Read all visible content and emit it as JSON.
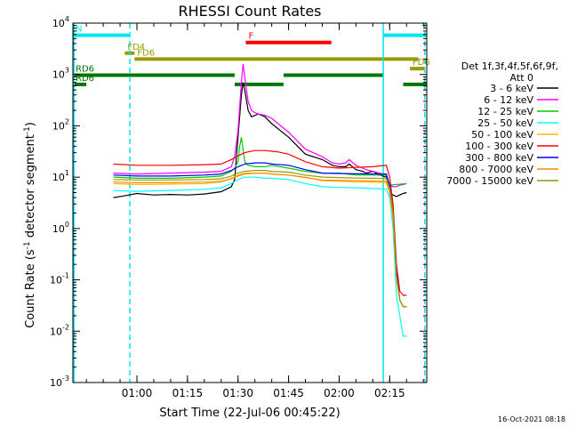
{
  "chart_data": {
    "type": "line",
    "title": "RHESSI Count Rates",
    "xlabel": "Start Time (22-Jul-06 00:45:22)",
    "ylabel_main": "Count Rate (s",
    "ylabel_sup1": "-1",
    "ylabel_mid": " detector segment",
    "ylabel_sup2": "-1",
    "ylabel_end": ")",
    "ylog": true,
    "xlim_min": [
      41.0,
      146.0
    ],
    "ylim_exp": [
      -3,
      4
    ],
    "xticks": [
      {
        "label": "01:00",
        "min": 60
      },
      {
        "label": "01:15",
        "min": 75
      },
      {
        "label": "01:30",
        "min": 90
      },
      {
        "label": "01:45",
        "min": 105
      },
      {
        "label": "02:00",
        "min": 120
      },
      {
        "label": "02:15",
        "min": 135
      }
    ],
    "yticks_exp": [
      -3,
      -2,
      -1,
      0,
      1,
      2,
      3,
      4
    ],
    "legend_header": [
      "Det 1f,3f,4f,5f,6f,9f,",
      "Att 0"
    ],
    "legend_placement": "right",
    "series": [
      {
        "name": "3 - 6 keV",
        "color": "#000000",
        "x": [
          53,
          56,
          60,
          65,
          70,
          75,
          80,
          85,
          88,
          89,
          90,
          91,
          91.5,
          92,
          93,
          94,
          96,
          98,
          100,
          105,
          110,
          115,
          118,
          120,
          122,
          123,
          125,
          127,
          128,
          130,
          132,
          134,
          135,
          136,
          137,
          138,
          139,
          140
        ],
        "y": [
          4,
          4.3,
          4.8,
          4.5,
          4.6,
          4.5,
          4.7,
          5.2,
          6.5,
          9,
          60,
          400,
          700,
          500,
          200,
          150,
          170,
          150,
          110,
          60,
          28,
          22,
          17,
          16,
          16,
          18,
          14,
          13,
          12,
          13,
          11,
          10,
          5,
          4.5,
          4.2,
          4.5,
          4.8,
          5
        ]
      },
      {
        "name": "6 - 12 keV",
        "color": "#ff00ff",
        "x": [
          53,
          60,
          70,
          80,
          85,
          88,
          89,
          90,
          91,
          91.5,
          92,
          93,
          94,
          95,
          96,
          98,
          100,
          105,
          110,
          115,
          118,
          120,
          122,
          123,
          125,
          128,
          130,
          132,
          134,
          135,
          136,
          137,
          138,
          139,
          140
        ],
        "y": [
          12,
          11.5,
          12,
          12.5,
          13,
          16,
          25,
          80,
          700,
          1600,
          900,
          300,
          200,
          180,
          170,
          160,
          140,
          75,
          35,
          25,
          19,
          18,
          19,
          22,
          17,
          14,
          13,
          12,
          11,
          7,
          6.5,
          6.5,
          7,
          7.2,
          7.5
        ]
      },
      {
        "name": "12 - 25 keV",
        "color": "#00cc00",
        "x": [
          53,
          60,
          70,
          80,
          85,
          88,
          89,
          90,
          90.5,
          91,
          92,
          93,
          95,
          98,
          100,
          105,
          110,
          115,
          120,
          125,
          130,
          134,
          135,
          140
        ],
        "y": [
          10,
          9.5,
          9.5,
          10,
          10.5,
          13,
          15,
          20,
          40,
          60,
          20,
          17,
          16,
          16,
          17,
          15,
          13,
          12,
          12,
          11,
          11,
          11,
          7,
          7.5
        ]
      },
      {
        "name": "25 - 50 keV",
        "color": "#00ffff",
        "x": [
          53,
          60,
          70,
          80,
          85,
          88,
          90,
          92,
          95,
          98,
          100,
          105,
          110,
          115,
          120,
          125,
          130,
          134,
          135,
          136,
          137,
          138,
          139,
          140
        ],
        "y": [
          5.5,
          5.3,
          5.5,
          5.8,
          6.2,
          7.5,
          9,
          10,
          10,
          9.5,
          9.5,
          9,
          7.5,
          6.5,
          6.3,
          6.2,
          6,
          5.8,
          4,
          1,
          0.05,
          0.02,
          0.008,
          0.008
        ]
      },
      {
        "name": "50 - 100 keV",
        "color": "#ffbb00",
        "x": [
          53,
          60,
          70,
          80,
          85,
          88,
          90,
          92,
          95,
          98,
          100,
          105,
          110,
          115,
          120,
          125,
          130,
          134,
          135,
          136,
          137,
          138,
          139,
          140
        ],
        "y": [
          7.5,
          7.2,
          7.3,
          7.5,
          8,
          9.5,
          11,
          12,
          12,
          12,
          11.5,
          11,
          10,
          8.5,
          8.3,
          8.1,
          8,
          7.8,
          5,
          1.5,
          0.1,
          0.04,
          0.03,
          0.03
        ]
      },
      {
        "name": "100 - 300 keV",
        "color": "#ff0000",
        "x": [
          53,
          60,
          70,
          80,
          85,
          88,
          90,
          92,
          95,
          98,
          100,
          102,
          105,
          110,
          115,
          120,
          125,
          130,
          134,
          135,
          136,
          137,
          138,
          139,
          140
        ],
        "y": [
          18,
          17,
          17,
          17.5,
          18,
          22,
          26,
          30,
          33,
          33,
          32,
          31,
          28,
          20,
          16,
          15,
          15.5,
          16,
          17,
          10,
          3,
          0.2,
          0.06,
          0.05,
          0.05
        ]
      },
      {
        "name": "300 - 800 keV",
        "color": "#0000ff",
        "x": [
          53,
          60,
          70,
          80,
          85,
          88,
          90,
          92,
          95,
          98,
          100,
          105,
          110,
          115,
          120,
          125,
          130,
          134,
          135,
          136,
          137,
          138,
          139,
          140
        ],
        "y": [
          11,
          10.5,
          10.5,
          11,
          11.5,
          13.5,
          16,
          18,
          19,
          19,
          18,
          17,
          14,
          12,
          11.8,
          11.6,
          11.5,
          11.5,
          7,
          2,
          0.15,
          0.04,
          0.03,
          0.03
        ]
      },
      {
        "name": "800 - 7000 keV",
        "color": "#ff8800",
        "x": [
          53,
          60,
          70,
          80,
          85,
          88,
          90,
          92,
          95,
          98,
          100,
          105,
          110,
          115,
          120,
          125,
          130,
          134,
          135,
          136,
          137,
          138,
          139,
          140
        ],
        "y": [
          8,
          7.8,
          7.8,
          8,
          8.3,
          9.3,
          10.5,
          11.5,
          12,
          12,
          11.5,
          11,
          9.8,
          8.8,
          8.6,
          8.5,
          8.4,
          8.3,
          5.5,
          1.8,
          0.12,
          0.04,
          0.03,
          0.03
        ]
      },
      {
        "name": "7000 - 15000 keV",
        "color": "#999900",
        "x": [
          53,
          60,
          70,
          80,
          85,
          88,
          90,
          92,
          95,
          98,
          100,
          105,
          110,
          115,
          120,
          125,
          130,
          134,
          135,
          136,
          137,
          138,
          139,
          140
        ],
        "y": [
          9,
          8.8,
          8.8,
          9,
          9.3,
          10.5,
          12,
          13,
          13.5,
          13.5,
          13,
          12.5,
          11,
          10,
          9.8,
          9.6,
          9.5,
          9.4,
          6,
          2,
          0.12,
          0.04,
          0.03,
          0.03
        ]
      }
    ],
    "annotations": [
      {
        "label": "N",
        "color": "#00e5ee",
        "x_start": 41.0,
        "x_end": 57.8,
        "y": 5800
      },
      {
        "label": "",
        "color": "#00e5ee",
        "x_start": 133.2,
        "x_end": 146.0,
        "y": 5800
      },
      {
        "label": "F",
        "color": "#ff0000",
        "x_start": 92.3,
        "x_end": 117.7,
        "y": 4200
      },
      {
        "label": "FD4",
        "color": "#999900",
        "x_start": 56.4,
        "x_end": 59.3,
        "y": 2600
      },
      {
        "label": "FD6",
        "color": "#999900",
        "x_start": 59.3,
        "x_end": 143.5,
        "y": 2000
      },
      {
        "label": "FD6",
        "color": "#999900",
        "x_start": 141.0,
        "x_end": 145.5,
        "y": 1300
      },
      {
        "label": "RD6",
        "color": "#007700",
        "x_start": 41.0,
        "x_end": 89.0,
        "y": 970
      },
      {
        "label": "",
        "color": "#007700",
        "x_start": 103.5,
        "x_end": 133.0,
        "y": 970
      },
      {
        "label": "RD6",
        "color": "#007700",
        "x_start": 41.0,
        "x_end": 45.0,
        "y": 640
      },
      {
        "label": "",
        "color": "#007700",
        "x_start": 89.0,
        "x_end": 103.5,
        "y": 640
      },
      {
        "label": "",
        "color": "#007700",
        "x_start": 139.0,
        "x_end": 146.0,
        "y": 640
      }
    ],
    "vlines": [
      {
        "x": 41.3,
        "style": "solid",
        "color": "#00e5ee"
      },
      {
        "x": 57.9,
        "style": "dashed",
        "color": "#00e5ee"
      },
      {
        "x": 133.1,
        "style": "solid",
        "color": "#00e5ee"
      },
      {
        "x": 145.4,
        "style": "dashed",
        "color": "#00e5ee"
      }
    ],
    "timestamp": "16-Oct-2021 08:18"
  }
}
